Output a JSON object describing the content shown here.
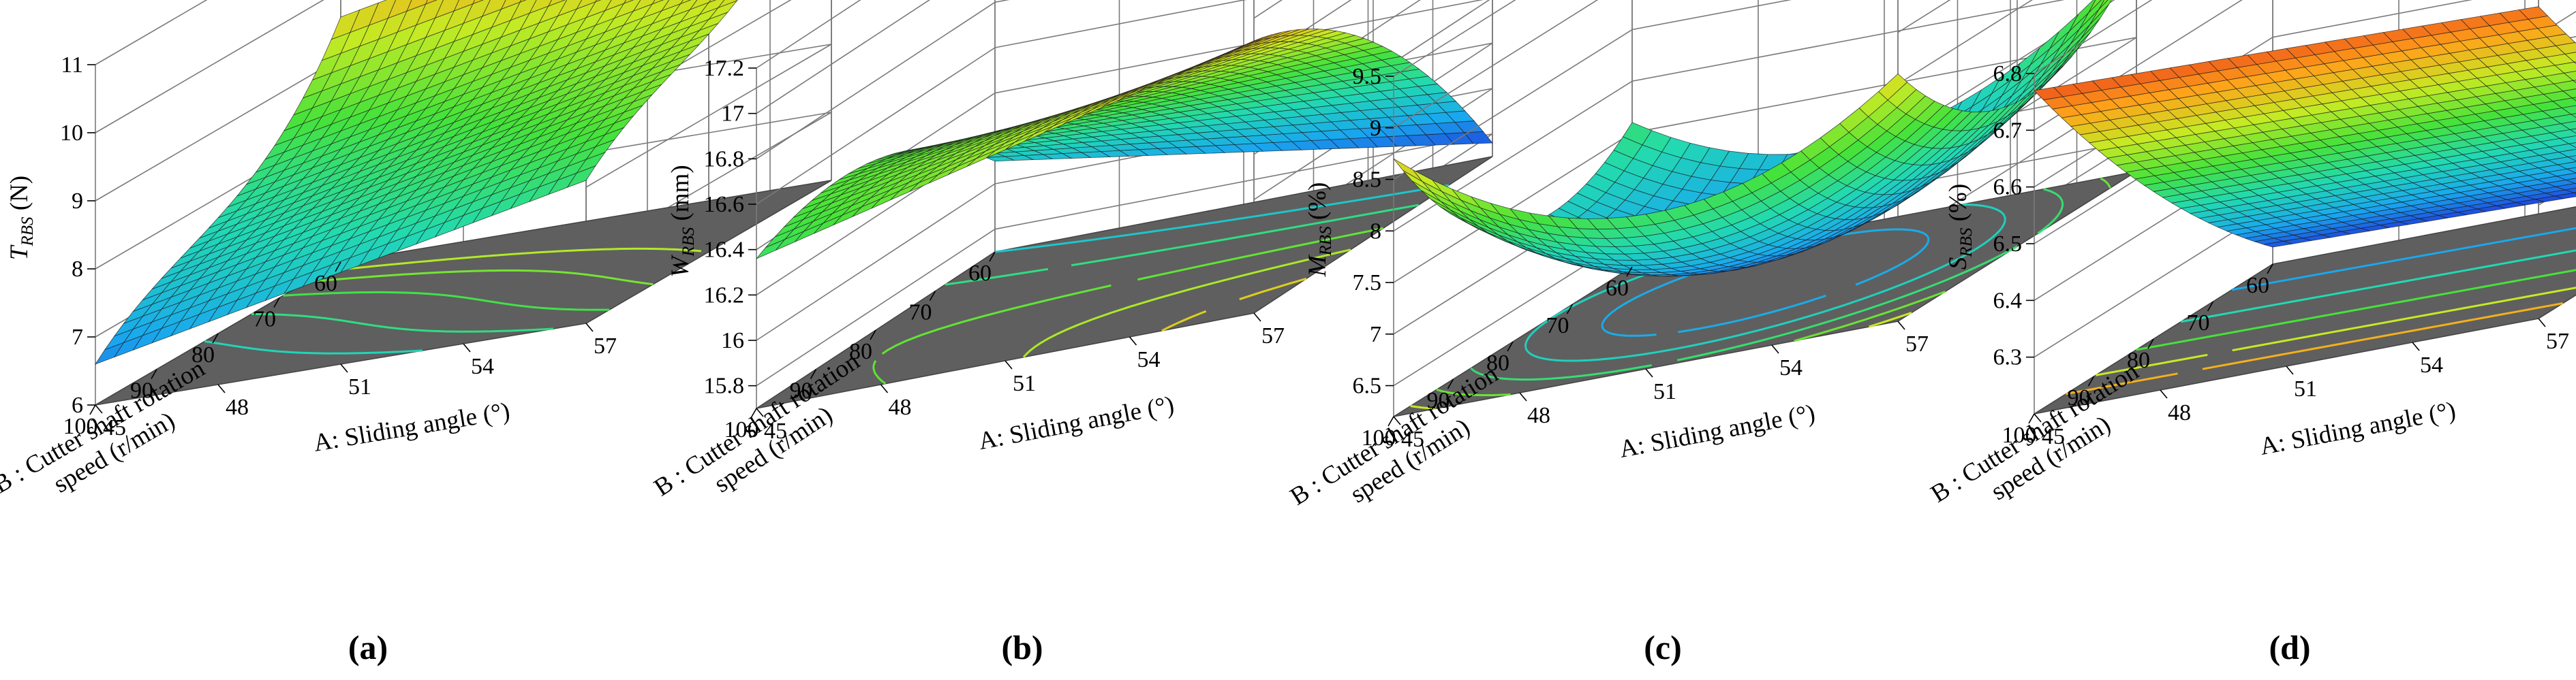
{
  "figure": {
    "panel_labels": [
      "(a)",
      "(b)",
      "(c)",
      "(d)"
    ]
  },
  "chart_data": [
    {
      "type": "surface",
      "panel": "(a)",
      "x": {
        "label": "A: Sliding angle (°)",
        "range": [
          45,
          57
        ],
        "ticks": [
          45,
          48,
          51,
          54,
          57
        ]
      },
      "y": {
        "label_line1": "B : Cutter shaft rotation",
        "label_line2": "speed (r/min)",
        "range": [
          60,
          100
        ],
        "ticks": [
          60,
          70,
          80,
          90,
          100
        ]
      },
      "z": {
        "label": "T",
        "label_sub": "RBS",
        "label_unit": " (N)",
        "range": [
          6,
          11
        ],
        "ticks": [
          6,
          7,
          8,
          9,
          10,
          11
        ]
      },
      "model": {
        "c": 8.45,
        "a": 0.75,
        "b": -0.95,
        "ab": 0,
        "aa": 0,
        "bb": 0.4,
        "bbb": -0.55
      },
      "contour_levels": [
        7.6,
        8.0,
        8.4,
        8.8,
        9.2
      ],
      "colormap": [
        "#1f2fd8",
        "#19a8ef",
        "#22d9b2",
        "#46e23a",
        "#c6ea24",
        "#ffa21a",
        "#e5361c"
      ]
    },
    {
      "type": "surface",
      "panel": "(b)",
      "x": {
        "label": "A: Sliding angle (°)",
        "range": [
          45,
          57
        ],
        "ticks": [
          45,
          48,
          51,
          54,
          57
        ]
      },
      "y": {
        "label_line1": "B : Cutter shaft rotation",
        "label_line2": "speed (r/min)",
        "range": [
          60,
          100
        ],
        "ticks": [
          60,
          70,
          80,
          90,
          100
        ]
      },
      "z": {
        "label": "W",
        "label_sub": "RBS",
        "label_unit": " (mm)",
        "range": [
          15.7,
          17.2
        ],
        "ticks": [
          15.8,
          16,
          16.2,
          16.4,
          16.6,
          16.8,
          17,
          17.2
        ]
      },
      "model": {
        "c": 16.5,
        "a": 0.05,
        "b": 0.35,
        "ab": 0.22,
        "aa": 0.0,
        "bb": -0.22,
        "bbb": 0
      },
      "contour_levels": [
        16.1,
        16.3,
        16.5,
        16.65,
        16.8
      ],
      "colormap": [
        "#1f2fd8",
        "#19a8ef",
        "#22d9b2",
        "#46e23a",
        "#c6ea24",
        "#ffa21a",
        "#e5361c"
      ]
    },
    {
      "type": "surface",
      "panel": "(c)",
      "x": {
        "label": "A: Sliding angle (°)",
        "range": [
          45,
          57
        ],
        "ticks": [
          45,
          48,
          51,
          54,
          57
        ]
      },
      "y": {
        "label_line1": "B : Cutter shaft rotation",
        "label_line2": "speed (r/min)",
        "range": [
          60,
          100
        ],
        "ticks": [
          60,
          70,
          80,
          90,
          100
        ]
      },
      "z": {
        "label": "M",
        "label_sub": "RBS",
        "label_unit": " (%)",
        "range": [
          6.2,
          9.5
        ],
        "ticks": [
          6.5,
          7,
          7.5,
          8,
          8.5,
          9,
          9.5
        ]
      },
      "model": {
        "c": 6.5,
        "a": 0.15,
        "b": 0.35,
        "ab": -0.2,
        "aa": 0.95,
        "bb": 0.85,
        "bbb": 0
      },
      "contour_levels": [
        6.8,
        7.2,
        7.6,
        8.0,
        8.4
      ],
      "colormap": [
        "#1f2fd8",
        "#19a8ef",
        "#22d9b2",
        "#46e23a",
        "#c6ea24",
        "#ffa21a",
        "#e5361c"
      ]
    },
    {
      "type": "surface",
      "panel": "(d)",
      "x": {
        "label": "A: Sliding angle (°)",
        "range": [
          45,
          57
        ],
        "ticks": [
          45,
          48,
          51,
          54,
          57
        ]
      },
      "y": {
        "label_line1": "B : Cutter shaft rotation",
        "label_line2": "speed (r/min)",
        "range": [
          60,
          100
        ],
        "ticks": [
          60,
          70,
          80,
          90,
          100
        ]
      },
      "z": {
        "label": "S",
        "label_sub": "RBS",
        "label_unit": " (%)",
        "range": [
          6.2,
          6.8
        ],
        "ticks": [
          6.3,
          6.4,
          6.5,
          6.6,
          6.7,
          6.8
        ]
      },
      "model": {
        "c": 6.45,
        "a": -0.01,
        "b": 0.27,
        "ab": 0.0,
        "aa": 0.0,
        "bb": 0.04,
        "bbb": 0
      },
      "contour_levels": [
        6.3,
        6.4,
        6.5,
        6.6,
        6.68
      ],
      "colormap": [
        "#1f2fd8",
        "#19a8ef",
        "#22d9b2",
        "#46e23a",
        "#c6ea24",
        "#ffa21a",
        "#e5361c"
      ]
    }
  ]
}
